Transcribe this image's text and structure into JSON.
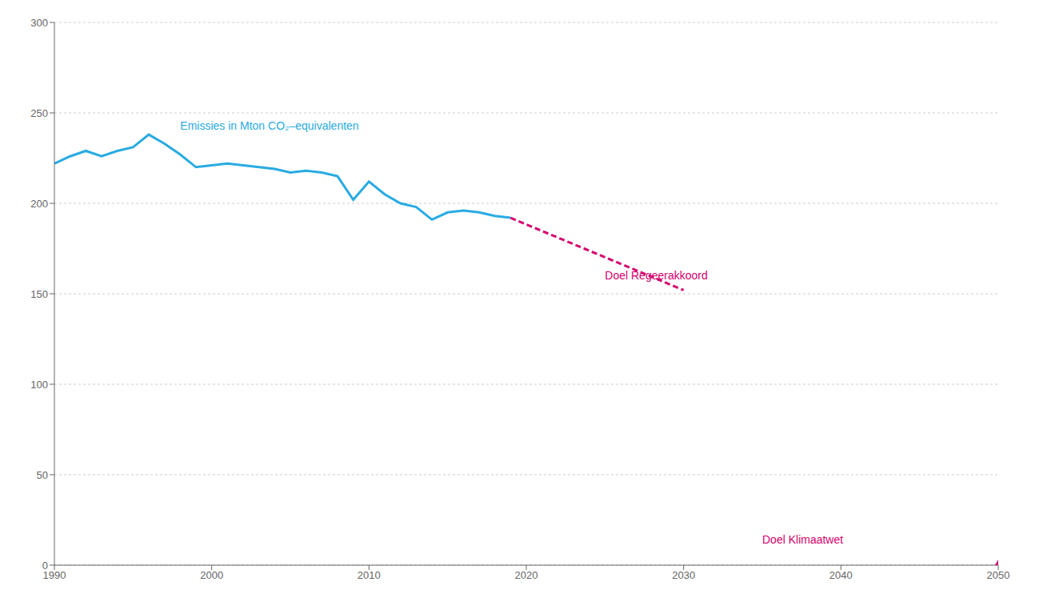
{
  "chart_data": {
    "type": "line",
    "series": [
      {
        "x": [
          1990,
          1991,
          1992,
          1993,
          1994,
          1995,
          1996,
          1997,
          1998,
          1999,
          2000,
          2001,
          2002,
          2003,
          2004,
          2005,
          2006,
          2007,
          2008,
          2009,
          2010,
          2011,
          2012,
          2013,
          2014,
          2015,
          2016,
          2017,
          2018,
          2019
        ],
        "values": [
          222,
          226,
          229,
          226,
          229,
          231,
          238,
          233,
          227,
          220,
          221,
          222,
          221,
          220,
          219,
          217,
          218,
          217,
          215,
          202,
          212,
          205,
          200,
          198,
          191,
          195,
          196,
          195,
          193,
          192
        ],
        "color": "#29ABE2",
        "line_style": "solid"
      },
      {
        "x": [
          2019,
          2030
        ],
        "values": [
          192,
          152
        ],
        "color": "#D6006E",
        "line_style": "dashed"
      },
      {
        "x": [
          2050
        ],
        "values": [
          0
        ],
        "color": "#D6006E",
        "type": "scatter",
        "marker": "triangle"
      }
    ],
    "annotations": [
      {
        "text": "Emissies in Mton CO₂–equivalenten",
        "x": 1998,
        "y": 243,
        "color": "#29ABE2"
      },
      {
        "text": "Doel Regeerakkoord",
        "x": 2025,
        "y": 160,
        "color": "#D6006E"
      },
      {
        "text": "Doel Klimaatwet",
        "x": 2035,
        "y": 14,
        "color": "#D6006E"
      }
    ],
    "xlim": [
      1990,
      2050
    ],
    "ylim": [
      0,
      300
    ],
    "xticks": [
      1990,
      2000,
      2010,
      2020,
      2030,
      2040,
      2050
    ],
    "yticks": [
      0,
      50,
      100,
      150,
      200,
      250,
      300
    ],
    "grid": true
  }
}
